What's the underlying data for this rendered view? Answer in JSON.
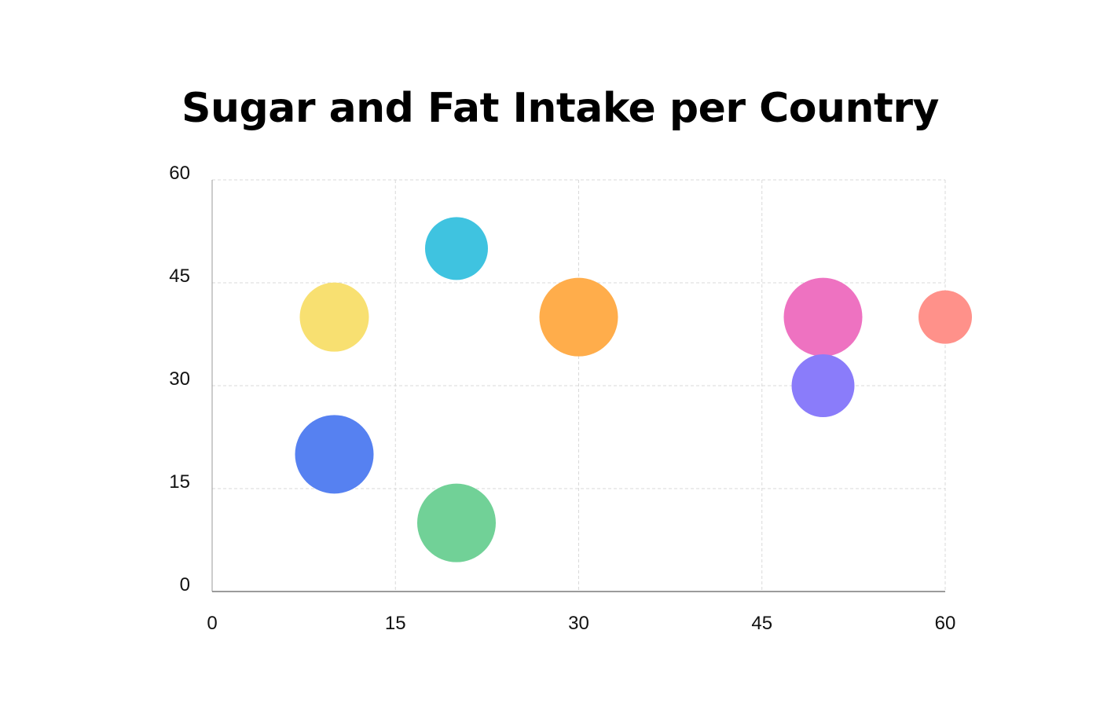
{
  "chart_data": {
    "type": "scatter",
    "title": "Sugar and Fat Intake per Country",
    "xlabel": "",
    "ylabel": "",
    "xlim": [
      0,
      60
    ],
    "ylim": [
      0,
      60
    ],
    "x_ticks": [
      "0",
      "15",
      "30",
      "45",
      "60"
    ],
    "y_ticks": [
      "0",
      "15",
      "30",
      "45",
      "60"
    ],
    "grid": true,
    "points": [
      {
        "x": 10,
        "y": 40,
        "size": 44,
        "color": "#F8E071"
      },
      {
        "x": 20,
        "y": 50,
        "size": 40,
        "color": "#3FC3E0"
      },
      {
        "x": 30,
        "y": 40,
        "size": 50,
        "color": "#FFAD4B"
      },
      {
        "x": 50,
        "y": 40,
        "size": 50,
        "color": "#EE72C1"
      },
      {
        "x": 60,
        "y": 40,
        "size": 34,
        "color": "#FF918A"
      },
      {
        "x": 50,
        "y": 30,
        "size": 40,
        "color": "#8A7CFA"
      },
      {
        "x": 10,
        "y": 20,
        "size": 50,
        "color": "#5681F1"
      },
      {
        "x": 20,
        "y": 10,
        "size": 50,
        "color": "#71D197"
      }
    ]
  }
}
